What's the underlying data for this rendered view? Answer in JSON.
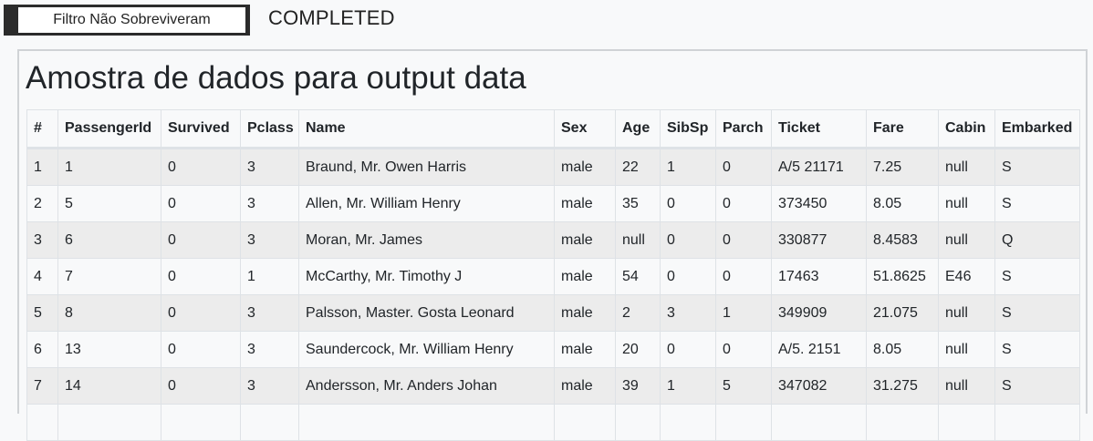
{
  "toolbar": {
    "filter_button_label": "Filtro Não Sobreviveram",
    "status_text": "COMPLETED"
  },
  "panel": {
    "title": "Amostra de dados para output data"
  },
  "table": {
    "columns": [
      "#",
      "PassengerId",
      "Survived",
      "Pclass",
      "Name",
      "Sex",
      "Age",
      "SibSp",
      "Parch",
      "Ticket",
      "Fare",
      "Cabin",
      "Embarked"
    ],
    "rows": [
      [
        "1",
        "1",
        "0",
        "3",
        "Braund, Mr. Owen Harris",
        "male",
        "22",
        "1",
        "0",
        "A/5 21171",
        "7.25",
        "null",
        "S"
      ],
      [
        "2",
        "5",
        "0",
        "3",
        "Allen, Mr. William Henry",
        "male",
        "35",
        "0",
        "0",
        "373450",
        "8.05",
        "null",
        "S"
      ],
      [
        "3",
        "6",
        "0",
        "3",
        "Moran, Mr. James",
        "male",
        "null",
        "0",
        "0",
        "330877",
        "8.4583",
        "null",
        "Q"
      ],
      [
        "4",
        "7",
        "0",
        "1",
        "McCarthy, Mr. Timothy J",
        "male",
        "54",
        "0",
        "0",
        "17463",
        "51.8625",
        "E46",
        "S"
      ],
      [
        "5",
        "8",
        "0",
        "3",
        "Palsson, Master. Gosta Leonard",
        "male",
        "2",
        "3",
        "1",
        "349909",
        "21.075",
        "null",
        "S"
      ],
      [
        "6",
        "13",
        "0",
        "3",
        "Saundercock, Mr. William Henry",
        "male",
        "20",
        "0",
        "0",
        "A/5. 2151",
        "8.05",
        "null",
        "S"
      ],
      [
        "7",
        "14",
        "0",
        "3",
        "Andersson, Mr. Anders Johan",
        "male",
        "39",
        "1",
        "5",
        "347082",
        "31.275",
        "null",
        "S"
      ],
      [
        "",
        "",
        "",
        "",
        "",
        "",
        "",
        "",
        "",
        "",
        "",
        "",
        ""
      ]
    ]
  }
}
